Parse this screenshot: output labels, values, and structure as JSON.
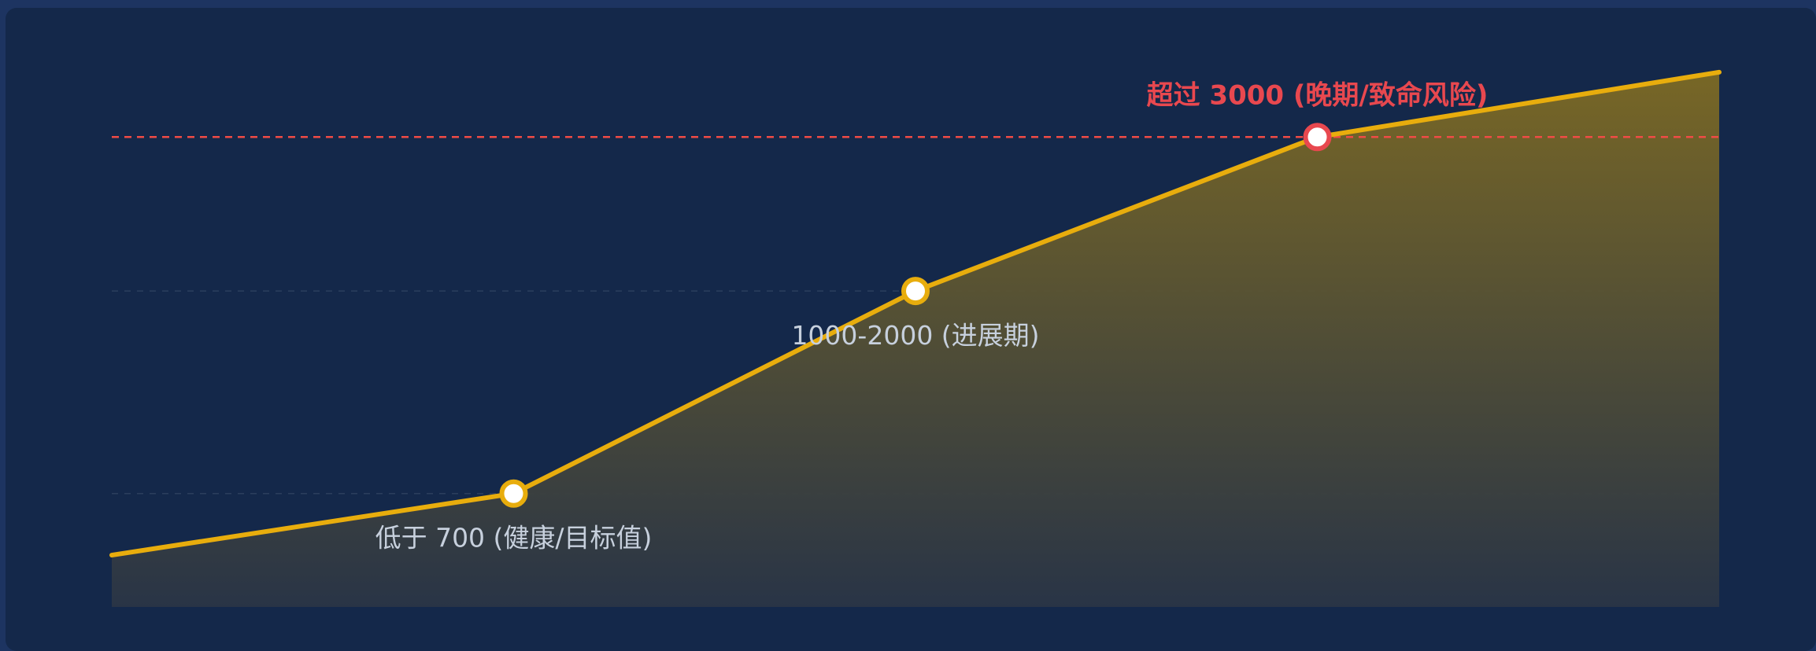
{
  "chart_data": {
    "type": "area",
    "title": "",
    "xlabel": "",
    "ylabel": "",
    "grid": true,
    "x": [
      0,
      1,
      2,
      3,
      4
    ],
    "y": [
      320,
      700,
      1950,
      2900,
      3300
    ],
    "ylim": [
      0,
      3600
    ],
    "threshold": {
      "value": 2900,
      "style": "dashed"
    },
    "annotations": [
      {
        "point_index": 1,
        "text": "低于 700 (健康/目标值)",
        "level": "normal"
      },
      {
        "point_index": 2,
        "text": "1000-2000 (进展期)",
        "level": "normal"
      },
      {
        "point_index": 3,
        "text": "超过 3000 (晚期/致命风险)",
        "level": "danger"
      }
    ],
    "colors": {
      "page_border": "#1d3461",
      "panel": "#14284a",
      "line": "#e8ad0d",
      "marker_fill": "#ffffff",
      "marker_stroke": "#e8ad0d",
      "danger": "#e8484f",
      "threshold": "#f04b45",
      "grid": "#3b4e6b",
      "label": "#c7d0dd"
    }
  }
}
